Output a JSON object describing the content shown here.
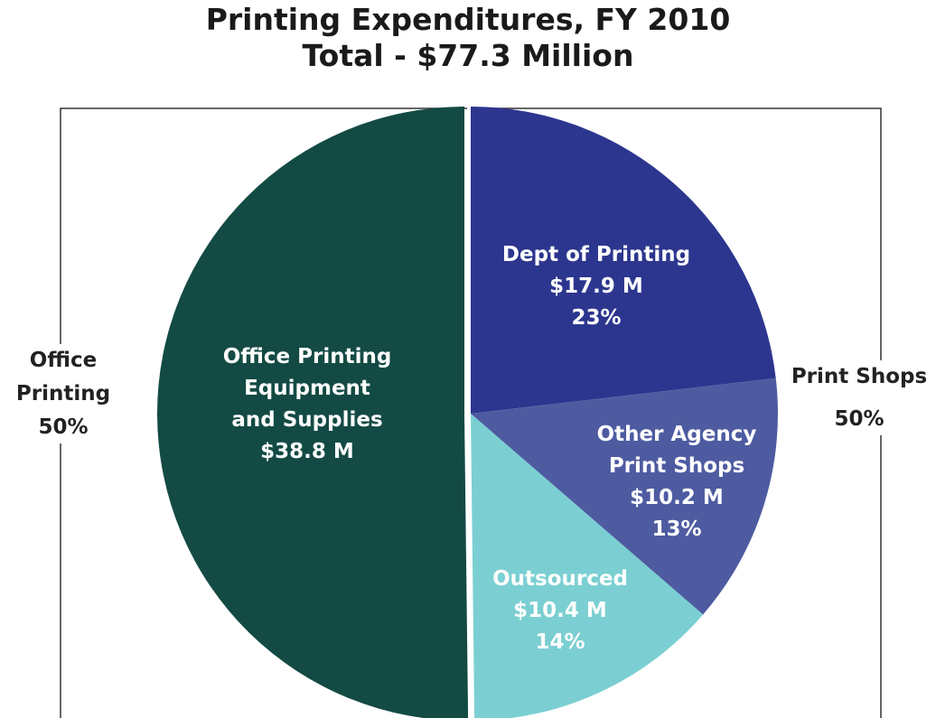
{
  "chart_data": {
    "type": "pie",
    "title": "Printing Expenditures, FY 2010",
    "subtitle": "Total - $77.3 Million",
    "total": 77.3,
    "unit": "$ Million",
    "slices": [
      {
        "key": "office",
        "label_lines": [
          "Office Printing",
          "Equipment",
          "and Supplies",
          "$38.8 M"
        ],
        "value": 38.8,
        "percent": null,
        "color": "#134a44",
        "text_color": "#ffffff",
        "exploded": true
      },
      {
        "key": "dept",
        "label_lines": [
          "Dept of Printing",
          "$17.9 M",
          "23%"
        ],
        "value": 17.9,
        "percent": 23,
        "color": "#2d368e",
        "text_color": "#ffffff",
        "exploded": false
      },
      {
        "key": "agency",
        "label_lines": [
          "Other Agency",
          "Print Shops",
          "$10.2 M",
          "13%"
        ],
        "value": 10.2,
        "percent": 13,
        "color": "#4e5ba1",
        "text_color": "#ffffff",
        "exploded": false
      },
      {
        "key": "outsourced",
        "label_lines": [
          "Outsourced",
          "$10.4 M",
          "14%"
        ],
        "value": 10.4,
        "percent": 14,
        "color": "#7bcfd2",
        "text_color": "#222222",
        "exploded": false
      }
    ],
    "groups": [
      {
        "key": "office-printing",
        "label_lines": [
          "Office",
          "Printing",
          "50%"
        ],
        "percent": 50,
        "slices": [
          "office"
        ]
      },
      {
        "key": "print-shops",
        "label_lines": [
          "Print Shops",
          "50%"
        ],
        "percent": 50,
        "slices": [
          "dept",
          "agency",
          "outsourced"
        ]
      }
    ]
  }
}
